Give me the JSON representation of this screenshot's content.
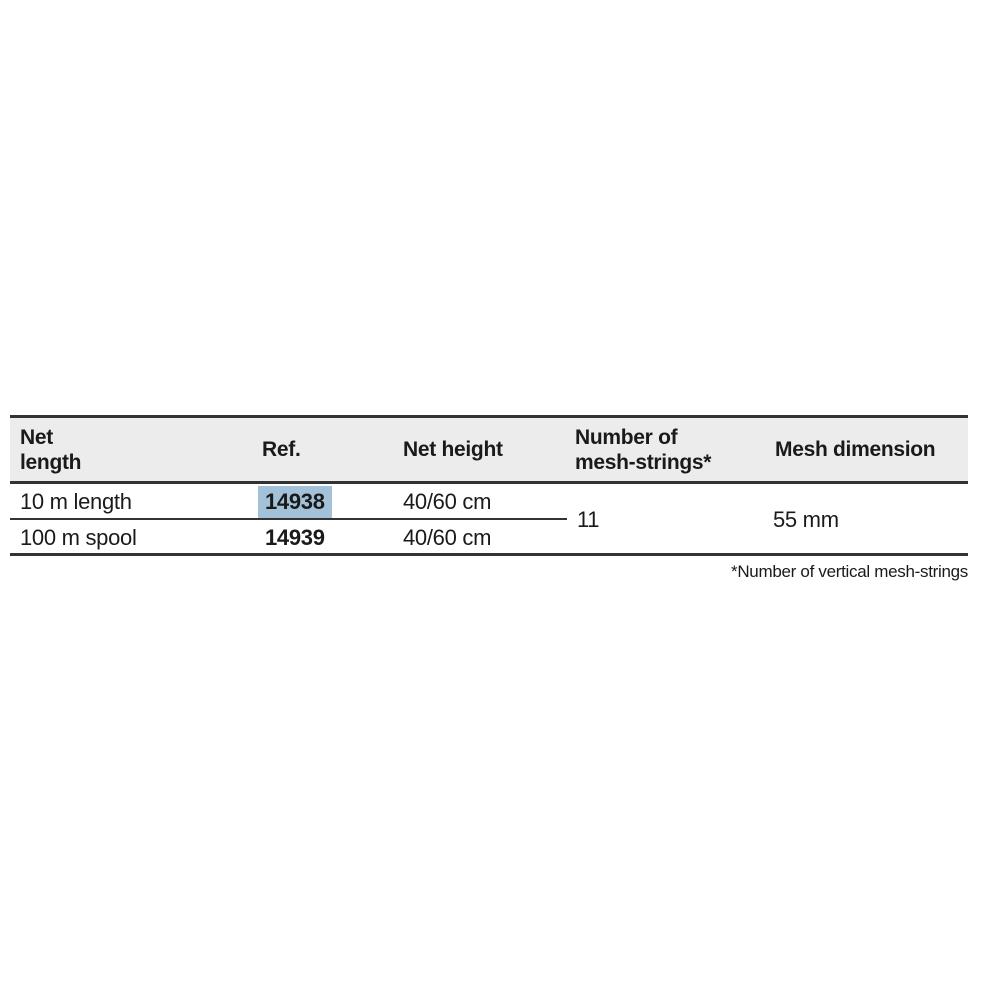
{
  "colors": {
    "header-bg": "#ececec",
    "border": "#333333",
    "text": "#1a1a1a",
    "highlight": "#a3c2da",
    "page-bg": "#ffffff"
  },
  "table": {
    "header": {
      "net_length": "Net\nlength",
      "ref": "Ref.",
      "net_height": "Net height",
      "mesh_strings": "Number of\nmesh-strings*",
      "mesh_dimension": "Mesh dimension"
    },
    "rows": [
      {
        "net_length": "10 m length",
        "ref": "14938",
        "net_height": "40/60 cm"
      },
      {
        "net_length": "100 m spool",
        "ref": "14939",
        "net_height": "40/60 cm"
      }
    ],
    "merged": {
      "mesh_strings": "11",
      "mesh_dimension": "55 mm"
    },
    "footnote": "*Number of vertical mesh-strings"
  }
}
